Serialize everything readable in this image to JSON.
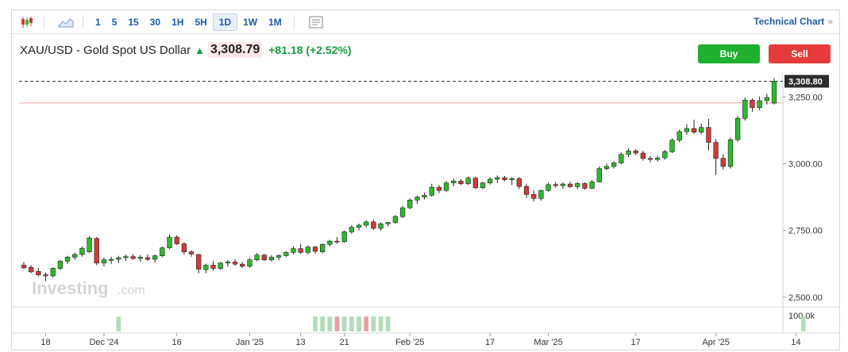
{
  "toolbar": {
    "icons": [
      "candlestick-icon",
      "area-chart-icon",
      "indicators-icon"
    ],
    "intervals": [
      "1",
      "5",
      "15",
      "30",
      "1H",
      "5H",
      "1D",
      "1W",
      "1M"
    ],
    "active_interval": "1D",
    "technical_link": "Technical Chart",
    "technical_chevron": "»"
  },
  "header": {
    "title": "XAU/USD - Gold Spot US Dollar",
    "arrow": "up-arrow-icon",
    "price": "3,308.79",
    "change": "+81.18",
    "change_pct": "(+2.52%)"
  },
  "buttons": {
    "buy": "Buy",
    "sell": "Sell"
  },
  "watermark": {
    "brand": "Investing",
    "suffix": ".com"
  },
  "colors": {
    "up": "#2dba2d",
    "down": "#d33a3a",
    "volume_up": "#b3dbb8",
    "volume_down": "#e8a0a0",
    "accent": "#1e5aa8"
  },
  "chart_data": {
    "type": "candlestick",
    "ylim": [
      2470,
      3340
    ],
    "y_ticks": [
      {
        "value": 3250,
        "label": "3,250.00"
      },
      {
        "value": 3000,
        "label": "3,000.00"
      },
      {
        "value": 2750,
        "label": "2,750.00"
      },
      {
        "value": 2500,
        "label": "2,500.00"
      }
    ],
    "last_price": {
      "value": 3308.8,
      "label": "3,308.80"
    },
    "prev_close": 3227.6,
    "x_labels": [
      {
        "index": 3,
        "label": "18"
      },
      {
        "index": 11,
        "label": "Dec '24"
      },
      {
        "index": 21,
        "label": "16"
      },
      {
        "index": 31,
        "label": "Jan '25"
      },
      {
        "index": 38,
        "label": "13"
      },
      {
        "index": 44,
        "label": "21"
      },
      {
        "index": 53,
        "label": "Feb '25"
      },
      {
        "index": 64,
        "label": "17"
      },
      {
        "index": 72,
        "label": "Mar '25"
      },
      {
        "index": 84,
        "label": "17"
      },
      {
        "index": 95,
        "label": "Apr '25"
      },
      {
        "index": 106,
        "label": "14"
      }
    ],
    "volume_scale_label": "100.0k",
    "volume_max": 100000,
    "ohlc": [
      [
        2620,
        2632,
        2605,
        2610
      ],
      [
        2612,
        2620,
        2590,
        2595
      ],
      [
        2597,
        2610,
        2578,
        2584
      ],
      [
        2584,
        2592,
        2560,
        2580
      ],
      [
        2580,
        2612,
        2574,
        2608
      ],
      [
        2608,
        2640,
        2602,
        2635
      ],
      [
        2635,
        2655,
        2625,
        2650
      ],
      [
        2650,
        2668,
        2640,
        2660
      ],
      [
        2660,
        2690,
        2652,
        2683
      ],
      [
        2670,
        2728,
        2665,
        2722
      ],
      [
        2720,
        2726,
        2620,
        2628
      ],
      [
        2628,
        2648,
        2615,
        2640
      ],
      [
        2638,
        2652,
        2624,
        2642
      ],
      [
        2642,
        2655,
        2628,
        2648
      ],
      [
        2648,
        2660,
        2636,
        2652
      ],
      [
        2652,
        2662,
        2640,
        2645
      ],
      [
        2645,
        2658,
        2632,
        2650
      ],
      [
        2648,
        2660,
        2636,
        2642
      ],
      [
        2642,
        2660,
        2630,
        2655
      ],
      [
        2655,
        2690,
        2650,
        2685
      ],
      [
        2685,
        2735,
        2680,
        2725
      ],
      [
        2725,
        2732,
        2695,
        2700
      ],
      [
        2700,
        2706,
        2660,
        2670
      ],
      [
        2670,
        2676,
        2652,
        2662
      ],
      [
        2660,
        2662,
        2590,
        2605
      ],
      [
        2603,
        2626,
        2590,
        2620
      ],
      [
        2620,
        2635,
        2600,
        2608
      ],
      [
        2608,
        2632,
        2602,
        2628
      ],
      [
        2628,
        2640,
        2615,
        2632
      ],
      [
        2632,
        2642,
        2618,
        2624
      ],
      [
        2624,
        2632,
        2610,
        2616
      ],
      [
        2616,
        2646,
        2610,
        2640
      ],
      [
        2640,
        2665,
        2635,
        2658
      ],
      [
        2658,
        2662,
        2635,
        2640
      ],
      [
        2640,
        2658,
        2634,
        2650
      ],
      [
        2650,
        2660,
        2638,
        2656
      ],
      [
        2656,
        2672,
        2650,
        2668
      ],
      [
        2668,
        2690,
        2660,
        2682
      ],
      [
        2682,
        2700,
        2662,
        2668
      ],
      [
        2668,
        2694,
        2660,
        2688
      ],
      [
        2688,
        2692,
        2664,
        2672
      ],
      [
        2670,
        2702,
        2665,
        2698
      ],
      [
        2698,
        2715,
        2690,
        2710
      ],
      [
        2710,
        2725,
        2700,
        2708
      ],
      [
        2708,
        2750,
        2704,
        2745
      ],
      [
        2745,
        2770,
        2738,
        2762
      ],
      [
        2762,
        2775,
        2750,
        2770
      ],
      [
        2770,
        2788,
        2762,
        2782
      ],
      [
        2782,
        2790,
        2752,
        2758
      ],
      [
        2758,
        2780,
        2750,
        2775
      ],
      [
        2775,
        2782,
        2765,
        2780
      ],
      [
        2780,
        2808,
        2775,
        2802
      ],
      [
        2802,
        2842,
        2796,
        2835
      ],
      [
        2835,
        2870,
        2830,
        2864
      ],
      [
        2864,
        2880,
        2850,
        2875
      ],
      [
        2875,
        2892,
        2866,
        2882
      ],
      [
        2882,
        2925,
        2876,
        2912
      ],
      [
        2912,
        2920,
        2890,
        2900
      ],
      [
        2900,
        2935,
        2895,
        2928
      ],
      [
        2928,
        2945,
        2915,
        2935
      ],
      [
        2935,
        2942,
        2920,
        2925
      ],
      [
        2925,
        2952,
        2920,
        2946
      ],
      [
        2946,
        2952,
        2905,
        2910
      ],
      [
        2910,
        2932,
        2905,
        2928
      ],
      [
        2928,
        2950,
        2922,
        2942
      ],
      [
        2942,
        2956,
        2928,
        2948
      ],
      [
        2948,
        2954,
        2935,
        2940
      ],
      [
        2940,
        2950,
        2920,
        2944
      ],
      [
        2944,
        2950,
        2905,
        2915
      ],
      [
        2915,
        2925,
        2872,
        2885
      ],
      [
        2885,
        2900,
        2858,
        2870
      ],
      [
        2870,
        2903,
        2862,
        2900
      ],
      [
        2900,
        2930,
        2895,
        2922
      ],
      [
        2922,
        2932,
        2910,
        2918
      ],
      [
        2918,
        2930,
        2906,
        2924
      ],
      [
        2924,
        2932,
        2910,
        2914
      ],
      [
        2914,
        2932,
        2905,
        2926
      ],
      [
        2926,
        2930,
        2902,
        2908
      ],
      [
        2908,
        2940,
        2905,
        2932
      ],
      [
        2932,
        2990,
        2930,
        2982
      ],
      [
        2982,
        3000,
        2975,
        2990
      ],
      [
        2990,
        3010,
        2982,
        3003
      ],
      [
        3003,
        3042,
        2998,
        3035
      ],
      [
        3035,
        3058,
        3025,
        3048
      ],
      [
        3048,
        3055,
        3032,
        3040
      ],
      [
        3040,
        3048,
        3012,
        3020
      ],
      [
        3020,
        3028,
        3005,
        3016
      ],
      [
        3016,
        3030,
        3008,
        3022
      ],
      [
        3022,
        3052,
        3015,
        3045
      ],
      [
        3045,
        3095,
        3040,
        3088
      ],
      [
        3088,
        3128,
        3080,
        3120
      ],
      [
        3120,
        3148,
        3108,
        3132
      ],
      [
        3132,
        3165,
        3112,
        3118
      ],
      [
        3118,
        3150,
        3110,
        3136
      ],
      [
        3136,
        3168,
        3050,
        3080
      ],
      [
        3080,
        3092,
        2958,
        3020
      ],
      [
        3020,
        3035,
        2978,
        2990
      ],
      [
        2990,
        3098,
        2982,
        3090
      ],
      [
        3090,
        3178,
        3082,
        3170
      ],
      [
        3170,
        3248,
        3162,
        3238
      ],
      [
        3238,
        3245,
        3195,
        3210
      ],
      [
        3210,
        3252,
        3200,
        3236
      ],
      [
        3236,
        3262,
        3222,
        3248
      ],
      [
        3227,
        3320,
        3222,
        3309
      ]
    ],
    "volume": [
      {
        "index": 13,
        "value": 72000,
        "up": true
      },
      {
        "index": 40,
        "value": 72000,
        "up": true
      },
      {
        "index": 41,
        "value": 72000,
        "up": true
      },
      {
        "index": 42,
        "value": 72000,
        "up": true
      },
      {
        "index": 43,
        "value": 72000,
        "up": false
      },
      {
        "index": 44,
        "value": 72000,
        "up": true
      },
      {
        "index": 45,
        "value": 72000,
        "up": true
      },
      {
        "index": 46,
        "value": 72000,
        "up": true
      },
      {
        "index": 47,
        "value": 72000,
        "up": false
      },
      {
        "index": 48,
        "value": 72000,
        "up": true
      },
      {
        "index": 49,
        "value": 72000,
        "up": true
      },
      {
        "index": 50,
        "value": 72000,
        "up": true
      },
      {
        "index": 107,
        "value": 72000,
        "up": true
      }
    ]
  }
}
